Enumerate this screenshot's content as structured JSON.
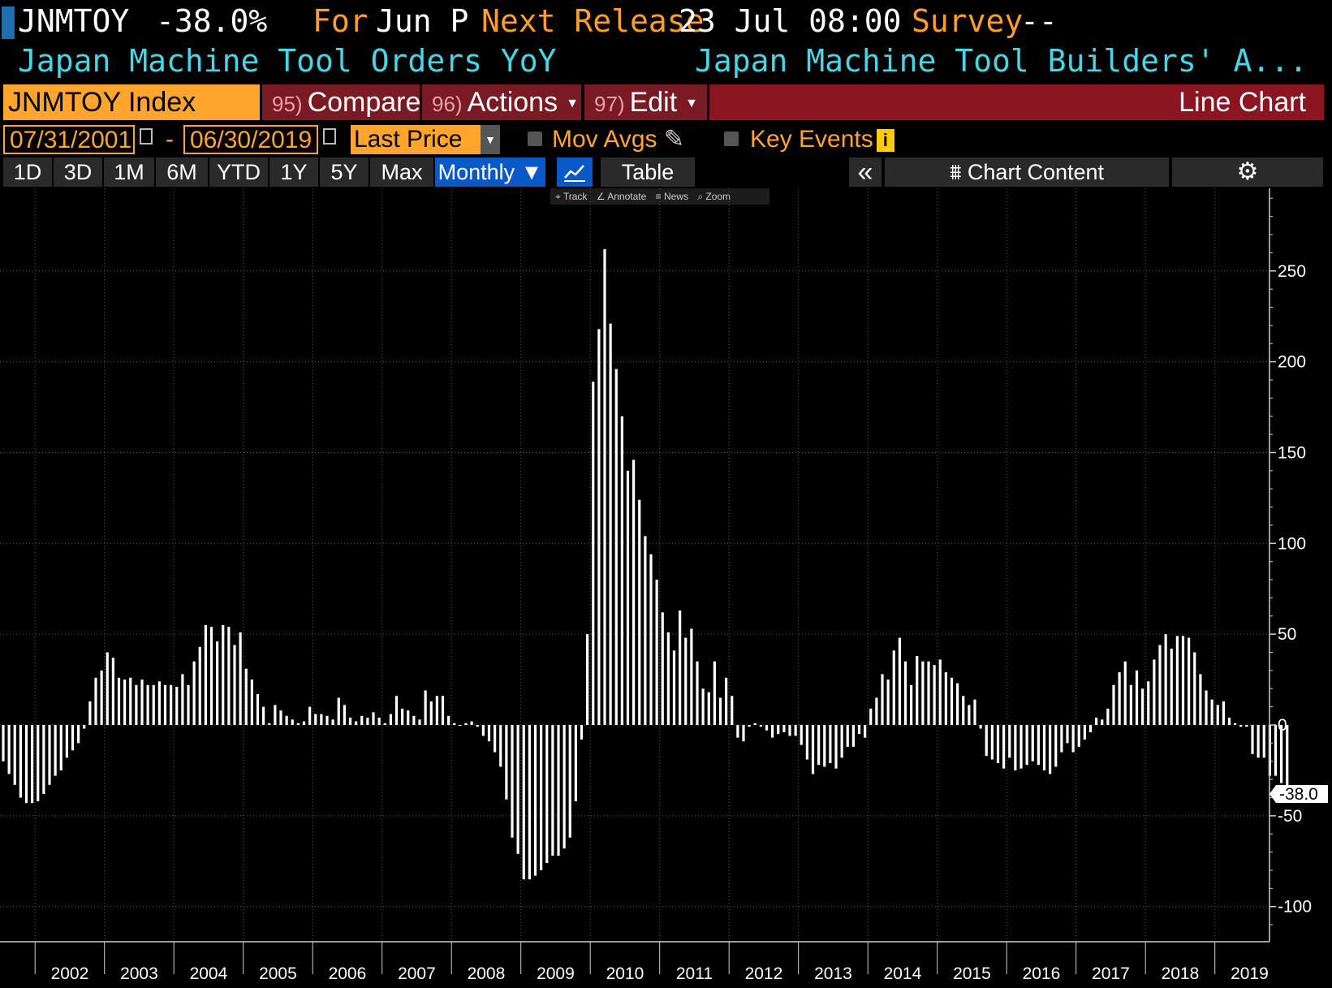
{
  "header": {
    "ticker": "JNMTOY",
    "last_value": "-38.0%",
    "for_label": "For",
    "period": "Jun P",
    "next_release_label": "Next Release",
    "next_release": "23 Jul 08:00",
    "survey_label": "Survey",
    "survey_value": "--",
    "name": "Japan Machine Tool Orders YoY",
    "source": "Japan Machine Tool Builders' A..."
  },
  "toolbar": {
    "security": "JNMTOY Index",
    "compare_num": "95)",
    "compare_label": "Compare",
    "actions_num": "96)",
    "actions_label": "Actions",
    "edit_num": "97)",
    "edit_label": "Edit",
    "chart_type": "Line Chart"
  },
  "range": {
    "start_date": "07/31/2001",
    "separator": "-",
    "end_date": "06/30/2019",
    "field": "Last Price",
    "mov_avgs": "Mov Avgs",
    "key_events": "Key Events"
  },
  "periods": {
    "buttons": [
      "1D",
      "3D",
      "1M",
      "6M",
      "YTD",
      "1Y",
      "5Y",
      "Max"
    ],
    "frequency": "Monthly",
    "table": "Table",
    "chart_content": "Chart Content"
  },
  "tools": {
    "track": "Track",
    "annotate": "Annotate",
    "news": "News",
    "zoom": "Zoom"
  },
  "colors": {
    "accent": "#ffa42d",
    "bar": "#ffffff",
    "active": "#0a59c8",
    "banner": "#8b1521"
  },
  "chart_data": {
    "type": "bar",
    "title": "",
    "xlabel": "",
    "ylabel": "",
    "ylim": [
      -120,
      290
    ],
    "yticks": [
      250,
      200,
      150,
      100,
      50,
      0,
      -50,
      -100
    ],
    "xticks": [
      "2002",
      "2003",
      "2004",
      "2005",
      "2006",
      "2007",
      "2008",
      "2009",
      "2010",
      "2011",
      "2012",
      "2013",
      "2014",
      "2015",
      "2016",
      "2017",
      "2018",
      "2019"
    ],
    "last_label": "-38.0",
    "start": "2001-07",
    "end": "2019-06",
    "values": [
      -20,
      -27,
      -33,
      -40,
      -43,
      -43,
      -42,
      -38,
      -33,
      -28,
      -25,
      -18,
      -14,
      -10,
      -2,
      13,
      26,
      30,
      40,
      37,
      26,
      25,
      26,
      22,
      25,
      22,
      22,
      24,
      22,
      22,
      21,
      28,
      22,
      35,
      43,
      55,
      54,
      46,
      55,
      54,
      44,
      51,
      31,
      25,
      17,
      10,
      1,
      11,
      8,
      5,
      3,
      1,
      2,
      10,
      6,
      6,
      5,
      3,
      15,
      11,
      4,
      2,
      5,
      4,
      7,
      4,
      1,
      6,
      16,
      9,
      8,
      5,
      3,
      19,
      13,
      16,
      16,
      5,
      1,
      0,
      1,
      2,
      -1,
      -6,
      -9,
      -15,
      -23,
      -41,
      -62,
      -71,
      -85,
      -85,
      -83,
      -80,
      -76,
      -72,
      -72,
      -68,
      -62,
      -42,
      -8,
      50,
      189,
      218,
      262,
      221,
      196,
      170,
      140,
      146,
      124,
      104,
      94,
      80,
      62,
      51,
      41,
      63,
      48,
      53,
      35,
      20,
      18,
      35,
      15,
      26,
      16,
      -7,
      -9,
      -1,
      1,
      -1,
      -3,
      -7,
      -5,
      -4,
      -6,
      -6,
      -11,
      -19,
      -27,
      -22,
      -23,
      -21,
      -24,
      -18,
      -12,
      -12,
      -5,
      -7,
      9,
      15,
      28,
      25,
      41,
      48,
      35,
      22,
      38,
      35,
      35,
      33,
      36,
      29,
      26,
      23,
      16,
      11,
      14,
      -2,
      -17,
      -19,
      -21,
      -24,
      -18,
      -25,
      -24,
      -22,
      -20,
      -22,
      -25,
      -27,
      -23,
      -15,
      -10,
      -15,
      -12,
      -8,
      -4,
      4,
      3,
      9,
      22,
      29,
      35,
      22,
      30,
      20,
      24,
      36,
      44,
      50,
      42,
      49,
      49,
      48,
      40,
      28,
      19,
      14,
      11,
      13,
      4,
      1,
      -1,
      -1,
      -16,
      -18,
      -18,
      -28,
      -28,
      -32,
      -38
    ]
  }
}
